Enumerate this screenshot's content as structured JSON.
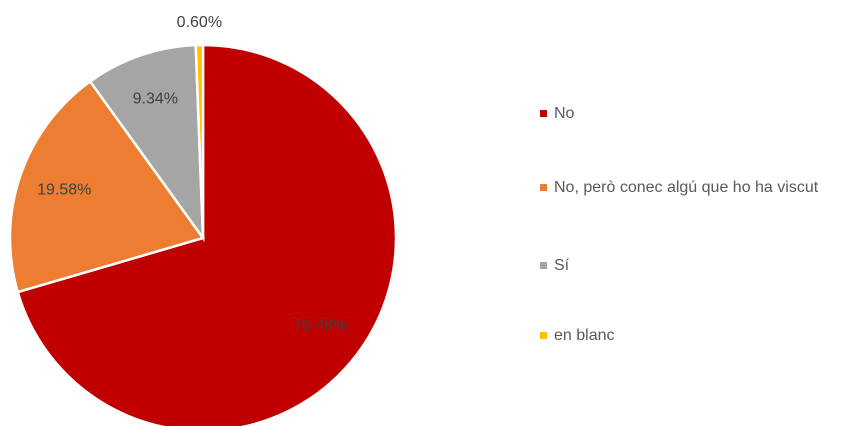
{
  "chart_data": {
    "type": "pie",
    "categories": [
      "No",
      "No, però conec algú que ho ha viscut",
      "Sí",
      "en blanc"
    ],
    "values": [
      70.48,
      19.58,
      9.34,
      0.6
    ],
    "value_labels": [
      "70.48%",
      "19.58%",
      "9.34%",
      "0.60%"
    ],
    "colors": [
      "#c00000",
      "#ed7d31",
      "#a5a5a5",
      "#ffc000"
    ],
    "legend": "right"
  }
}
